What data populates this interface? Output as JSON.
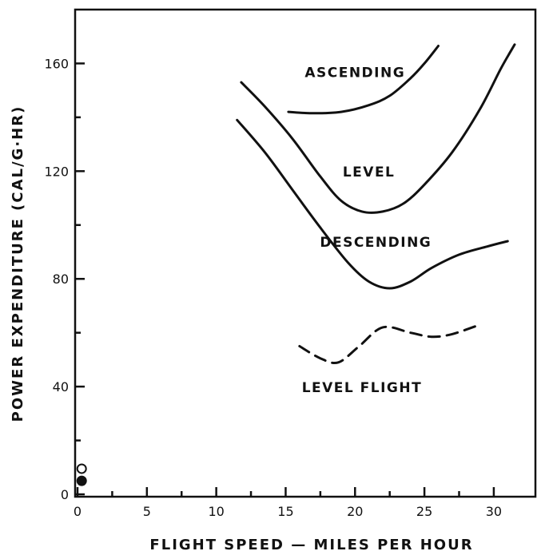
{
  "chart_data": {
    "type": "line",
    "xlabel": "FLIGHT SPEED — MILES PER HOUR",
    "ylabel": "POWER EXPENDITURE (CAL/G·HR)",
    "xlim": [
      0,
      33
    ],
    "ylim": [
      0,
      180
    ],
    "x_ticks": [
      0,
      5,
      10,
      15,
      20,
      25,
      30
    ],
    "y_ticks": [
      0,
      40,
      80,
      120,
      160
    ],
    "x_minor_ticks": [
      2.5,
      7.5,
      12.5,
      17.5,
      22.5,
      27.5
    ],
    "y_minor_ticks": [
      20,
      60,
      100,
      140
    ],
    "grid": false,
    "series": [
      {
        "name": "ASCENDING",
        "style": "solid",
        "points": [
          [
            15.2,
            142
          ],
          [
            17,
            141.5
          ],
          [
            19,
            142
          ],
          [
            21,
            144.5
          ],
          [
            22.5,
            148
          ],
          [
            24,
            154.5
          ],
          [
            25,
            160
          ],
          [
            26,
            166.5
          ]
        ],
        "label_at": [
          20,
          155
        ]
      },
      {
        "name": "LEVEL",
        "style": "solid",
        "points": [
          [
            11.8,
            153
          ],
          [
            13.5,
            144
          ],
          [
            15.5,
            132
          ],
          [
            17.5,
            118
          ],
          [
            19,
            109
          ],
          [
            20.5,
            105
          ],
          [
            22,
            105
          ],
          [
            23.5,
            108
          ],
          [
            25,
            115
          ],
          [
            27,
            127
          ],
          [
            29,
            143
          ],
          [
            30.5,
            158
          ],
          [
            31.5,
            167
          ]
        ],
        "label_at": [
          21,
          118
        ]
      },
      {
        "name": "DESCENDING",
        "style": "solid",
        "points": [
          [
            11.5,
            139
          ],
          [
            13.5,
            127
          ],
          [
            15.5,
            113
          ],
          [
            17.5,
            99
          ],
          [
            19.5,
            86
          ],
          [
            21,
            79
          ],
          [
            22.5,
            76.5
          ],
          [
            24,
            79
          ],
          [
            25.5,
            84
          ],
          [
            27.5,
            89
          ],
          [
            29.5,
            92
          ],
          [
            31,
            94
          ]
        ],
        "label_at": [
          21.5,
          92
        ]
      },
      {
        "name": "LEVEL FLIGHT",
        "style": "dashed",
        "points": [
          [
            16,
            55
          ],
          [
            17.5,
            50.5
          ],
          [
            18.8,
            49
          ],
          [
            20.3,
            55
          ],
          [
            22,
            62
          ],
          [
            24,
            60
          ],
          [
            25.5,
            58.5
          ],
          [
            27,
            59.5
          ],
          [
            29,
            63
          ]
        ],
        "label_at": [
          20.5,
          38
        ]
      }
    ],
    "markers": [
      {
        "x": 0.3,
        "y": 9.5,
        "fill": "open"
      },
      {
        "x": 0.3,
        "y": 5,
        "fill": "filled"
      }
    ]
  }
}
